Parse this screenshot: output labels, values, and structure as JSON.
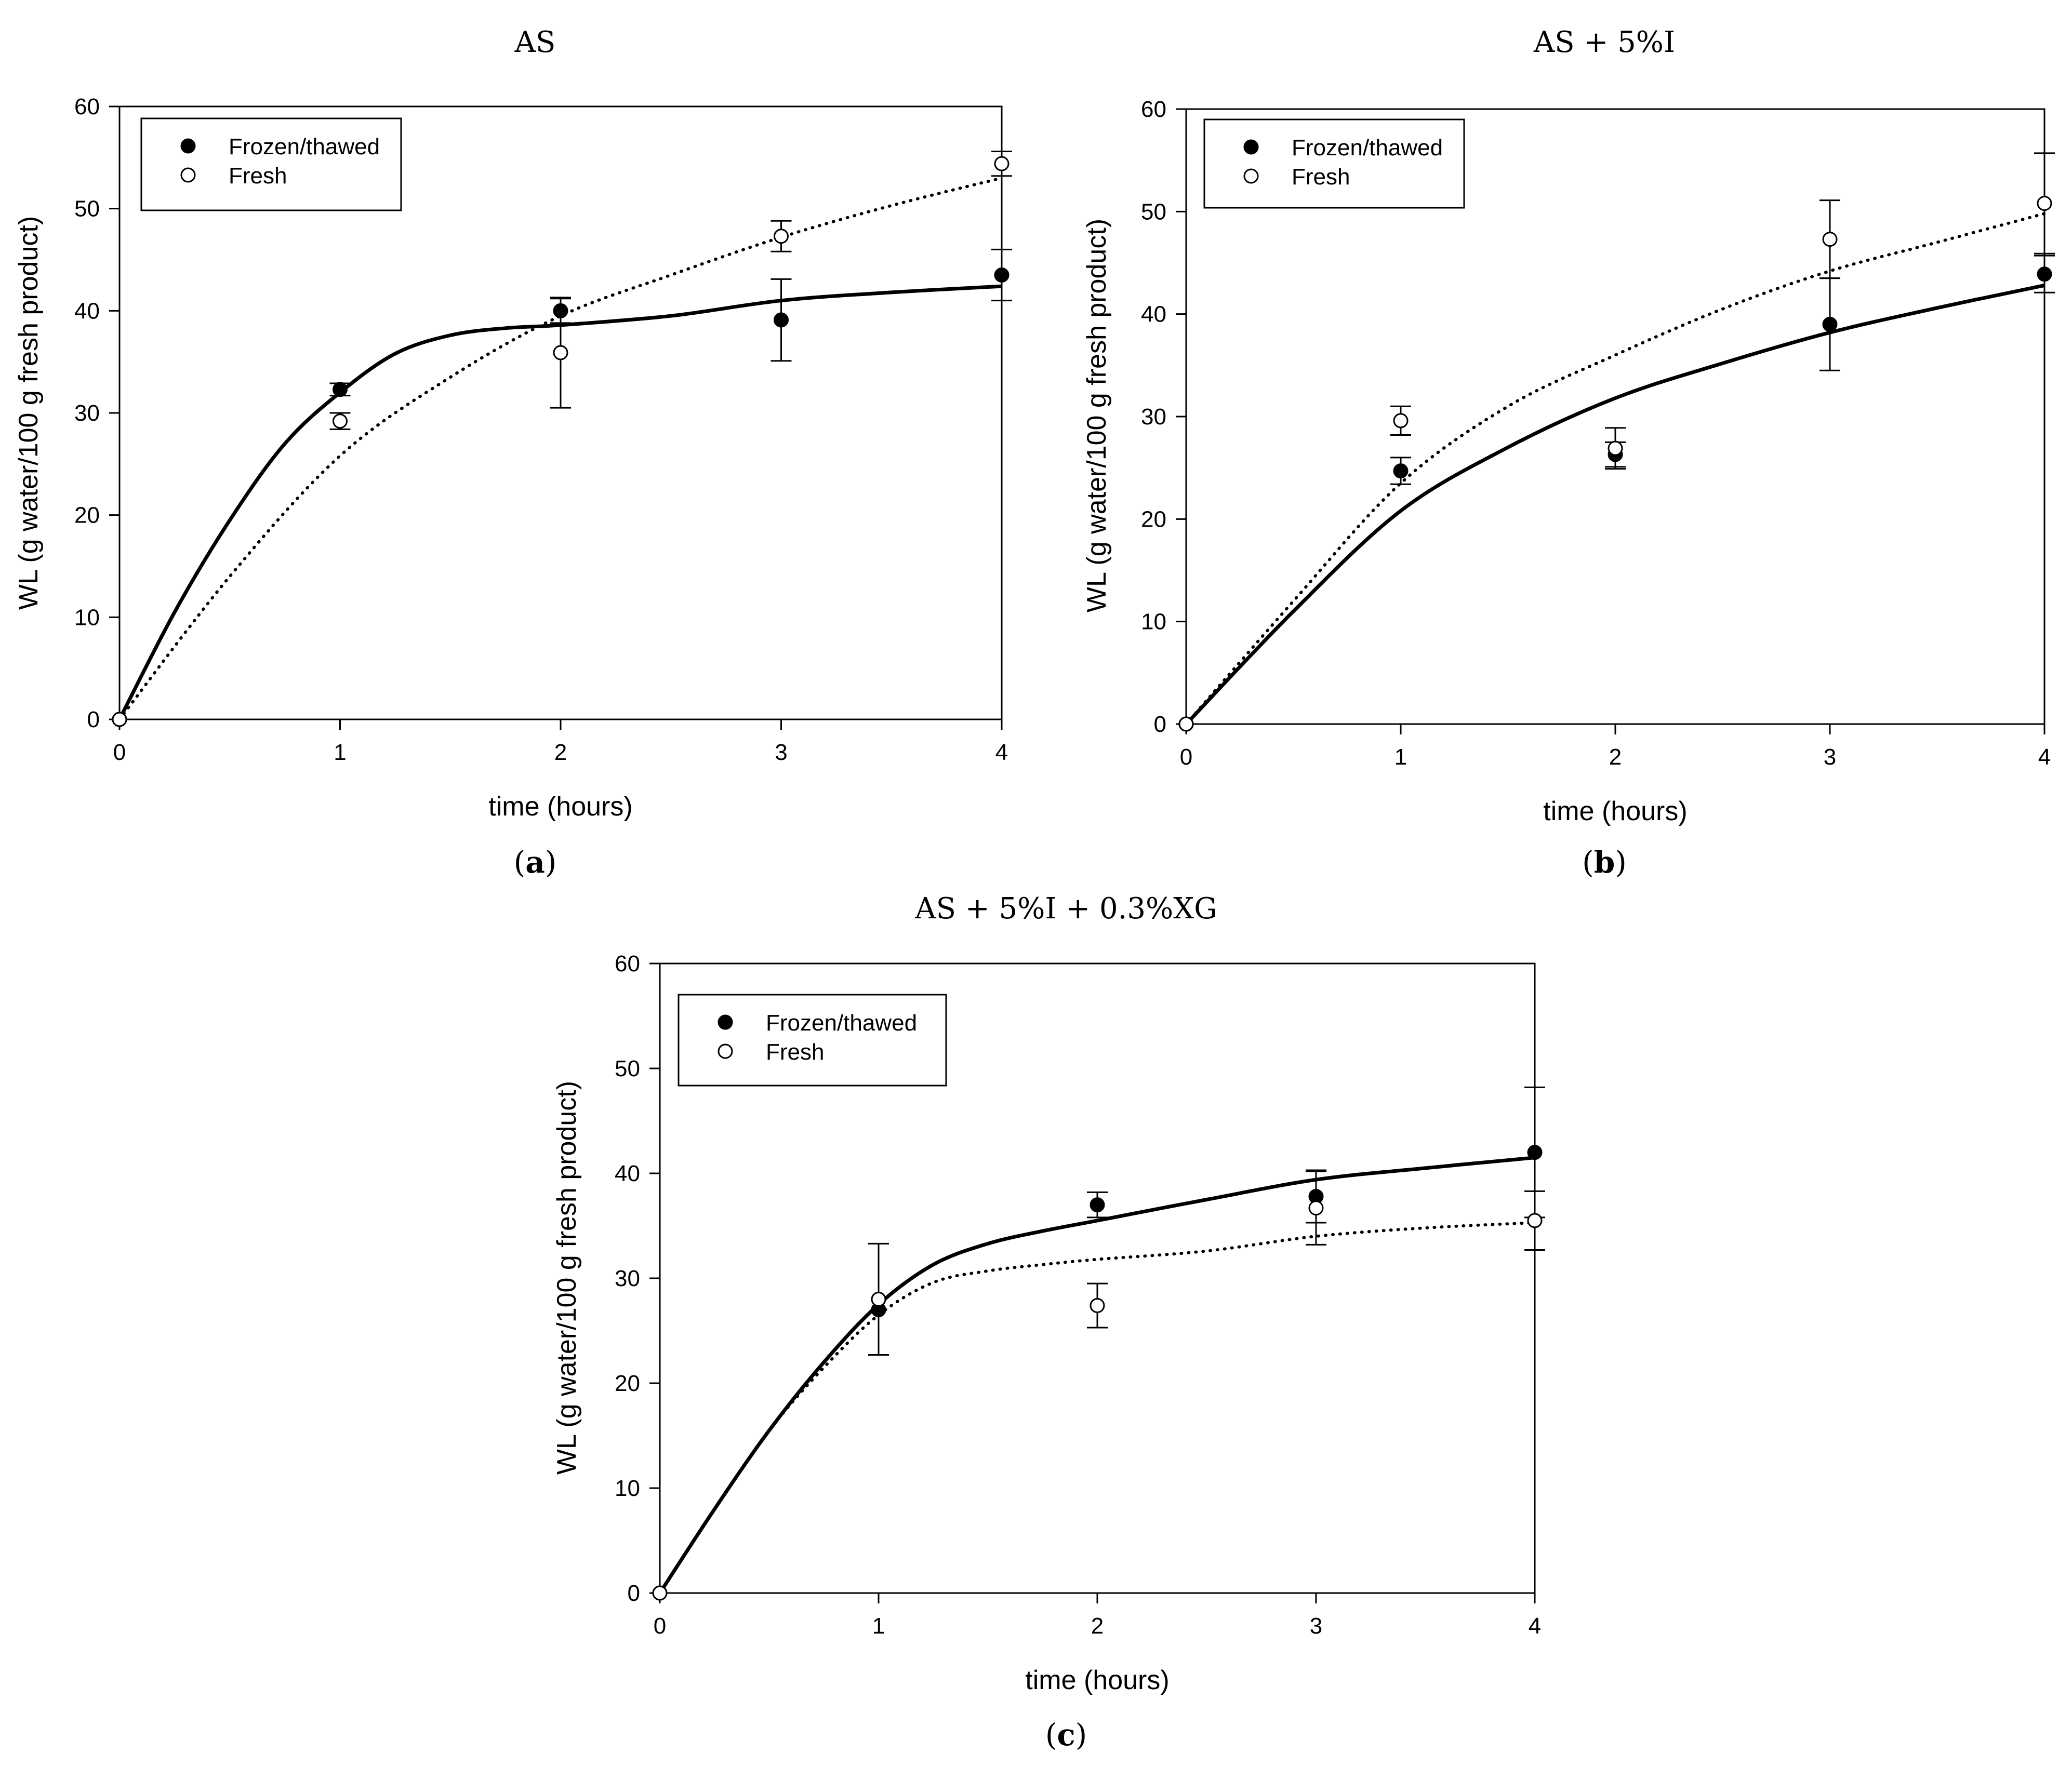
{
  "chart_data": [
    {
      "type": "scatter",
      "title": "AS",
      "caption": "a",
      "xlabel": "time (hours)",
      "ylabel": "WL (g water/100 g fresh product)",
      "xlim": [
        0,
        4
      ],
      "ylim": [
        0,
        60
      ],
      "xticks": [
        0,
        1,
        2,
        3,
        4
      ],
      "yticks": [
        0,
        10,
        20,
        30,
        40,
        50,
        60
      ],
      "legend": [
        "Frozen/thawed",
        "Fresh"
      ],
      "legend_position": "top-left",
      "series": [
        {
          "name": "Frozen/thawed",
          "marker": "filled-circle",
          "x": [
            0,
            1,
            2,
            3,
            4
          ],
          "y": [
            0,
            32.3,
            40.0,
            39.1,
            43.5
          ],
          "err": [
            0,
            0.6,
            1.2,
            4.0,
            2.5
          ],
          "fit_x": [
            0,
            0.25,
            0.5,
            0.75,
            1,
            1.25,
            1.5,
            1.75,
            2,
            2.5,
            3,
            3.5,
            4
          ],
          "fit_y": [
            0,
            10.5,
            19.5,
            27,
            32,
            35.8,
            37.6,
            38.3,
            38.6,
            39.5,
            41.0,
            41.8,
            42.4
          ],
          "fit_style": "solid"
        },
        {
          "name": "Fresh",
          "marker": "open-circle",
          "x": [
            0,
            1,
            2,
            3,
            4
          ],
          "y": [
            0,
            29.2,
            35.9,
            47.3,
            54.4
          ],
          "err": [
            0,
            0.8,
            5.4,
            1.5,
            1.2
          ],
          "fit_x": [
            0,
            0.5,
            1,
            1.5,
            2,
            2.5,
            3,
            3.5,
            4
          ],
          "fit_y": [
            0,
            14,
            25.8,
            33.5,
            39.5,
            43.5,
            47.2,
            50.3,
            53.0
          ],
          "fit_style": "dotted"
        }
      ]
    },
    {
      "type": "scatter",
      "title": "AS + 5%I",
      "caption": "b",
      "xlabel": "time (hours)",
      "ylabel": "WL (g water/100 g fresh product)",
      "xlim": [
        0,
        4
      ],
      "ylim": [
        0,
        60
      ],
      "xticks": [
        0,
        1,
        2,
        3,
        4
      ],
      "yticks": [
        0,
        10,
        20,
        30,
        40,
        50,
        60
      ],
      "legend": [
        "Frozen/thawed",
        "Fresh"
      ],
      "legend_position": "top-left",
      "series": [
        {
          "name": "Frozen/thawed",
          "marker": "filled-circle",
          "x": [
            0,
            1,
            2,
            3,
            4
          ],
          "y": [
            0,
            24.7,
            26.3,
            39.0,
            43.9
          ],
          "err": [
            0,
            1.3,
            1.2,
            4.5,
            1.8
          ],
          "fit_x": [
            0,
            0.5,
            1,
            1.5,
            2,
            2.5,
            3,
            3.5,
            4
          ],
          "fit_y": [
            0,
            11,
            20.8,
            27,
            31.8,
            35.2,
            38.2,
            40.6,
            42.8
          ],
          "fit_style": "solid"
        },
        {
          "name": "Fresh",
          "marker": "open-circle",
          "x": [
            0,
            1,
            2,
            3,
            4
          ],
          "y": [
            0,
            29.6,
            26.9,
            47.3,
            50.8
          ],
          "err": [
            0,
            1.4,
            2.0,
            3.8,
            4.9
          ],
          "fit_x": [
            0,
            0.5,
            1,
            1.5,
            2,
            2.5,
            3,
            3.5,
            4
          ],
          "fit_y": [
            0,
            12,
            23.5,
            31,
            36,
            40.5,
            44.2,
            47.0,
            49.8
          ],
          "fit_style": "dotted"
        }
      ]
    },
    {
      "type": "scatter",
      "title": "AS + 5%I + 0.3%XG",
      "caption": "c",
      "xlabel": "time (hours)",
      "ylabel": "WL (g  water/100 g fresh product)",
      "xlim": [
        0,
        4
      ],
      "ylim": [
        0,
        60
      ],
      "xticks": [
        0,
        1,
        2,
        3,
        4
      ],
      "yticks": [
        0,
        10,
        20,
        30,
        40,
        50,
        60
      ],
      "legend": [
        "Frozen/thawed",
        "Fresh"
      ],
      "legend_position": "top-left",
      "series": [
        {
          "name": "Frozen/thawed",
          "marker": "filled-circle",
          "x": [
            0,
            1,
            2,
            3,
            4
          ],
          "y": [
            0,
            27.0,
            37.0,
            37.8,
            42.0
          ],
          "err": [
            0,
            0,
            1.2,
            2.5,
            6.2
          ],
          "fit_x": [
            0,
            0.25,
            0.5,
            0.75,
            1,
            1.25,
            1.5,
            1.75,
            2,
            2.5,
            3,
            3.5,
            4
          ],
          "fit_y": [
            0,
            8,
            15.5,
            22,
            27.5,
            31.3,
            33.3,
            34.5,
            35.5,
            37.5,
            39.4,
            40.5,
            41.5
          ],
          "fit_style": "solid"
        },
        {
          "name": "Fresh",
          "marker": "open-circle",
          "x": [
            0,
            1,
            2,
            3,
            4
          ],
          "y": [
            0,
            28.0,
            27.4,
            36.7,
            35.5
          ],
          "err": [
            0,
            5.3,
            2.1,
            3.5,
            2.8
          ],
          "fit_x": [
            0,
            0.25,
            0.5,
            0.75,
            1,
            1.25,
            1.5,
            1.75,
            2,
            2.5,
            3,
            3.5,
            4
          ],
          "fit_y": [
            0,
            8,
            15.5,
            21.5,
            26.5,
            29.6,
            30.7,
            31.3,
            31.8,
            32.6,
            34.0,
            34.8,
            35.3
          ],
          "fit_style": "dotted"
        }
      ]
    }
  ]
}
